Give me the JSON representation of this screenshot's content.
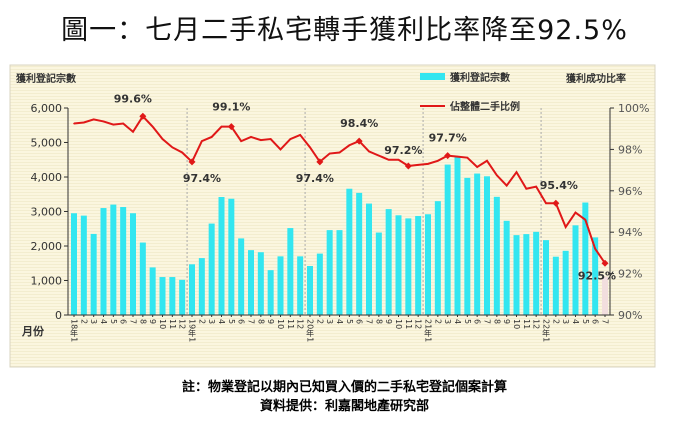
{
  "title": "圖一：七月二手私宅轉手獲利比率降至92.5%",
  "footnote": "註：物業登記以期內已知買入價的二手私宅登記個案計算",
  "source": "資料提供：利嘉閣地產研究部",
  "chart_data": {
    "type": "bar+line",
    "xlabel": "月份",
    "ylabel_left": "獲利登記宗數",
    "ylabel_right": "獲利成功比率",
    "ylim_left": [
      0,
      6000
    ],
    "ylim_right": [
      90,
      100
    ],
    "yticks_left": [
      "0",
      "1,000",
      "2,000",
      "3,000",
      "4,000",
      "5,000",
      "6,000"
    ],
    "yticks_right": [
      "90%",
      "92%",
      "94%",
      "96%",
      "98%",
      "100%"
    ],
    "legend_position": "top-right",
    "categories": [
      "18年1",
      "2",
      "3",
      "4",
      "5",
      "6",
      "7",
      "8",
      "9",
      "10",
      "11",
      "12",
      "19年1",
      "2",
      "3",
      "4",
      "5",
      "6",
      "7",
      "8",
      "9",
      "10",
      "11",
      "12",
      "20年1",
      "2",
      "3",
      "4",
      "5",
      "6",
      "7",
      "8",
      "9",
      "10",
      "11",
      "12",
      "21年1",
      "2",
      "3",
      "4",
      "5",
      "6",
      "7",
      "8",
      "9",
      "10",
      "11",
      "12",
      "22年1",
      "2",
      "3",
      "4",
      "5",
      "6",
      "7"
    ],
    "series": [
      {
        "name": "獲利登記宗數",
        "type": "bar",
        "axis": "left",
        "color": "#33e6f0",
        "values": [
          2950,
          2880,
          2350,
          3100,
          3200,
          3130,
          2950,
          2100,
          1380,
          1100,
          1100,
          1020,
          1470,
          1650,
          2650,
          3420,
          3370,
          2220,
          1880,
          1820,
          1300,
          1700,
          2520,
          1700,
          1420,
          1780,
          2460,
          2460,
          3660,
          3540,
          3230,
          2390,
          3070,
          2890,
          2800,
          2870,
          2920,
          3300,
          4360,
          4580,
          3975,
          4100,
          4020,
          3425,
          2730,
          2315,
          2345,
          2410,
          2170,
          1690,
          1860,
          2600,
          3260,
          2250,
          1110
        ]
      },
      {
        "name": "佔整體二手比例",
        "type": "line",
        "axis": "right",
        "color": "#e01818",
        "values": [
          99.25,
          99.3,
          99.45,
          99.35,
          99.2,
          99.25,
          98.85,
          99.6,
          99.1,
          98.5,
          98.1,
          97.85,
          97.4,
          98.4,
          98.6,
          99.1,
          99.1,
          98.4,
          98.6,
          98.45,
          98.5,
          98.0,
          98.5,
          98.7,
          98.1,
          97.4,
          97.8,
          97.85,
          98.2,
          98.4,
          97.9,
          97.7,
          97.5,
          97.5,
          97.2,
          97.25,
          97.3,
          97.45,
          97.7,
          97.65,
          97.6,
          97.15,
          97.45,
          96.75,
          96.25,
          96.9,
          96.1,
          96.2,
          95.4,
          95.4,
          94.25,
          94.95,
          94.6,
          93.2,
          92.5
        ]
      }
    ],
    "annotations": [
      {
        "index": 7,
        "text": "99.6%"
      },
      {
        "index": 12,
        "text": "97.4%"
      },
      {
        "index": 16,
        "text": "99.1%"
      },
      {
        "index": 25,
        "text": "97.4%"
      },
      {
        "index": 29,
        "text": "98.4%"
      },
      {
        "index": 34,
        "text": "97.2%"
      },
      {
        "index": 38,
        "text": "97.7%"
      },
      {
        "index": 49,
        "text": "95.4%"
      },
      {
        "index": 54,
        "text": "92.5%"
      }
    ]
  }
}
